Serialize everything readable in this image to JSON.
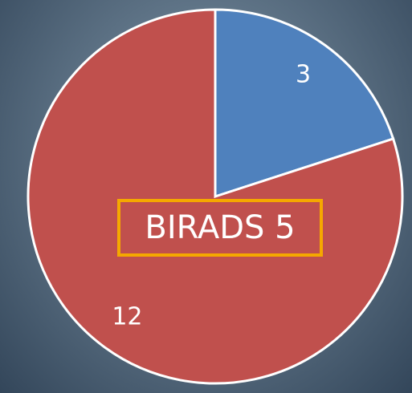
{
  "chart_data": {
    "type": "pie",
    "values": [
      3,
      12
    ],
    "colors": [
      "#4f81bd",
      "#c0504d"
    ],
    "annotation": "BIRADS 5"
  }
}
